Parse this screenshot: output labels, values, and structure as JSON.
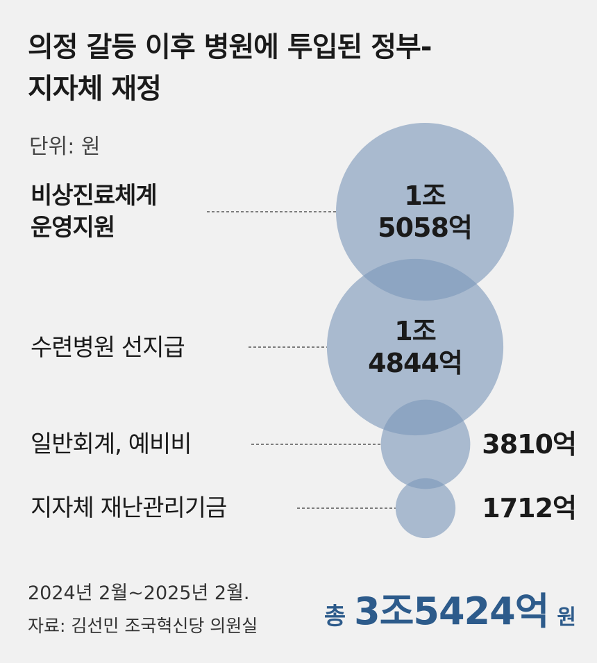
{
  "chart_data": {
    "type": "bubble",
    "title": "의정 갈등 이후 병원에 투입된 정부-지자체 재정",
    "unit": "단위: 원",
    "categories": [
      "비상진료체계 운영지원",
      "수련병원 선지급",
      "일반회계, 예비비",
      "지자체 재난관리기금"
    ],
    "values": [
      1505800000000,
      1484400000000,
      381000000000,
      171200000000
    ],
    "value_labels": [
      "1조 5058억",
      "1조 4844억",
      "3810억",
      "1712억"
    ],
    "color": "#7d97b9",
    "total": {
      "prefix": "총",
      "label": "3조5424억",
      "suffix": "원"
    },
    "period": "2024년 2월~2025년 2월.",
    "source": "자료: 김선민 조국혁신당 의원실"
  }
}
